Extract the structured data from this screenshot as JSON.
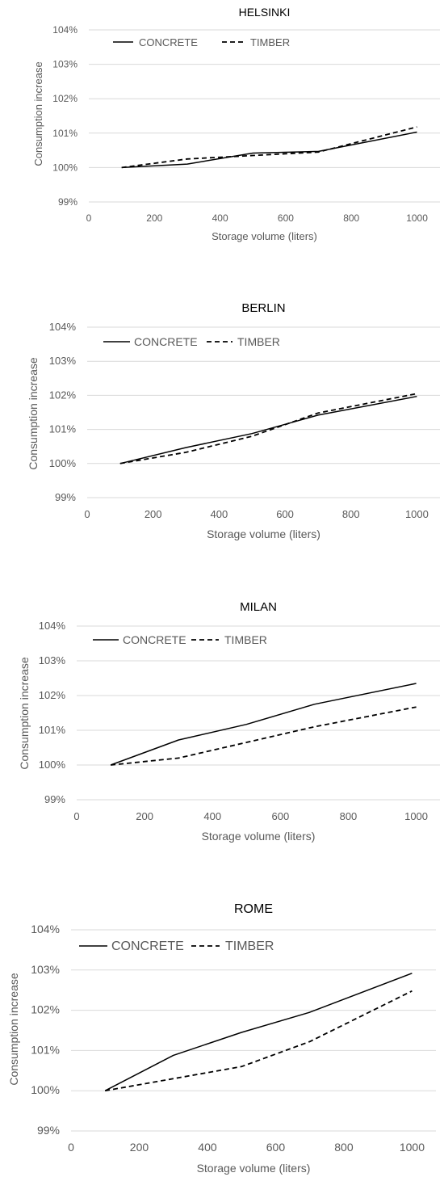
{
  "chart_data": [
    {
      "type": "line",
      "title": "HELSINKI",
      "xlabel": "Storage volume (liters)",
      "ylabel": "Consumption increase",
      "x": [
        100,
        300,
        500,
        700,
        1000
      ],
      "series": [
        {
          "name": "CONCRETE",
          "values": [
            100.0,
            100.1,
            100.42,
            100.47,
            101.03
          ],
          "style": "solid"
        },
        {
          "name": "TIMBER",
          "values": [
            100.0,
            100.25,
            100.35,
            100.45,
            101.18
          ],
          "style": "dashed"
        }
      ],
      "xticks": [
        "0",
        "200",
        "400",
        "600",
        "800",
        "1000"
      ],
      "yticks": [
        "99%",
        "100%",
        "101%",
        "102%",
        "103%",
        "104%"
      ],
      "xlim": [
        0,
        1070
      ],
      "ylim": [
        99,
        104
      ],
      "grid": "horizontal",
      "legend": "top-left"
    },
    {
      "type": "line",
      "title": "BERLIN",
      "xlabel": "Storage volume (liters)",
      "ylabel": "Consumption increase",
      "x": [
        100,
        300,
        500,
        700,
        1000
      ],
      "series": [
        {
          "name": "CONCRETE",
          "values": [
            100.0,
            100.47,
            100.88,
            101.42,
            101.97
          ],
          "style": "solid"
        },
        {
          "name": "TIMBER",
          "values": [
            100.0,
            100.33,
            100.8,
            101.48,
            102.05
          ],
          "style": "dashed"
        }
      ],
      "xticks": [
        "0",
        "200",
        "400",
        "600",
        "800",
        "1000"
      ],
      "yticks": [
        "99%",
        "100%",
        "101%",
        "102%",
        "103%",
        "104%"
      ],
      "xlim": [
        0,
        1070
      ],
      "ylim": [
        99,
        104
      ],
      "grid": "horizontal",
      "legend": "top-left"
    },
    {
      "type": "line",
      "title": "MILAN",
      "xlabel": "Storage volume (liters)",
      "ylabel": "Consumption increase",
      "x": [
        100,
        300,
        500,
        700,
        1000
      ],
      "series": [
        {
          "name": "CONCRETE",
          "values": [
            100.0,
            100.72,
            101.17,
            101.75,
            102.35
          ],
          "style": "solid"
        },
        {
          "name": "TIMBER",
          "values": [
            100.0,
            100.2,
            100.65,
            101.1,
            101.67
          ],
          "style": "dashed"
        }
      ],
      "xticks": [
        "0",
        "200",
        "400",
        "600",
        "800",
        "1000"
      ],
      "yticks": [
        "99%",
        "100%",
        "101%",
        "102%",
        "103%",
        "104%"
      ],
      "xlim": [
        0,
        1070
      ],
      "ylim": [
        99,
        104
      ],
      "grid": "horizontal",
      "legend": "top-left"
    },
    {
      "type": "line",
      "title": "ROME",
      "xlabel": "Storage volume (liters)",
      "ylabel": "Consumption increase",
      "x": [
        100,
        300,
        500,
        700,
        1000
      ],
      "series": [
        {
          "name": "CONCRETE",
          "values": [
            100.0,
            100.88,
            101.45,
            101.95,
            102.92
          ],
          "style": "solid"
        },
        {
          "name": "TIMBER",
          "values": [
            100.0,
            100.3,
            100.6,
            101.22,
            102.48
          ],
          "style": "dashed"
        }
      ],
      "xticks": [
        "0",
        "200",
        "400",
        "600",
        "800",
        "1000"
      ],
      "yticks": [
        "99%",
        "100%",
        "101%",
        "102%",
        "103%",
        "104%"
      ],
      "xlim": [
        0,
        1070
      ],
      "ylim": [
        99,
        104
      ],
      "grid": "horizontal",
      "legend": "top-left"
    }
  ],
  "colors": {
    "line": "#000000",
    "grid": "#d9d9d9",
    "text": "#595959",
    "axis": "#bfbfbf"
  }
}
